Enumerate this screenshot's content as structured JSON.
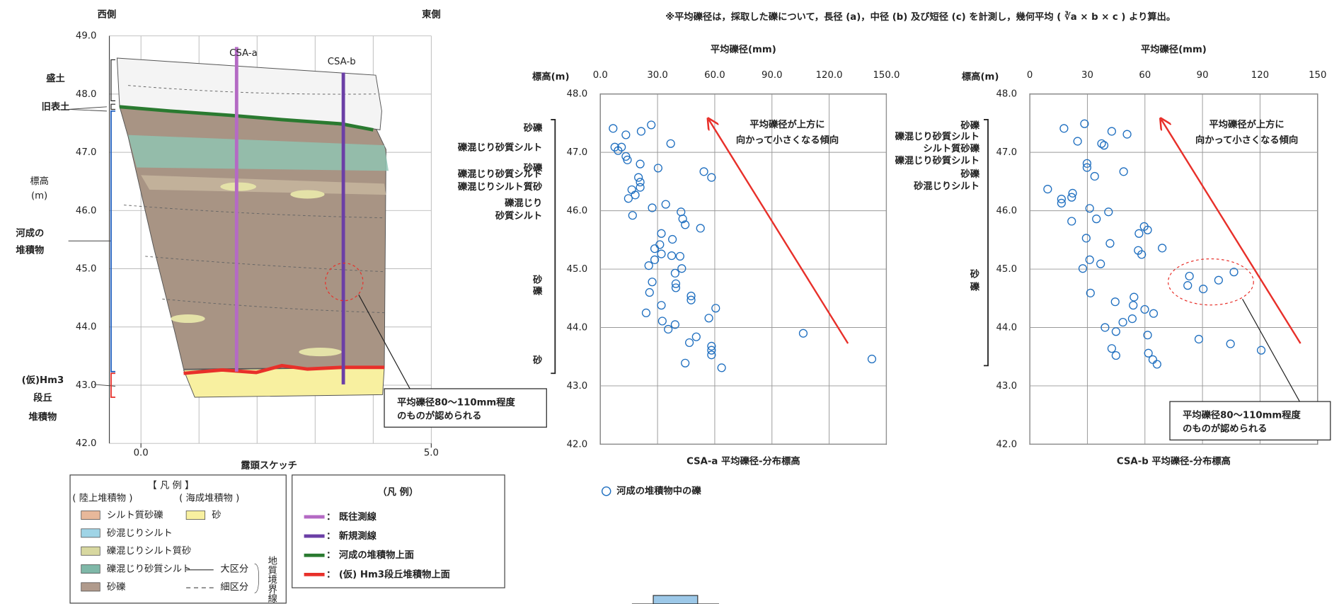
{
  "note": "※平均礫径は，採取した礫について，長径 (a)，中径 (b) 及び短径 (c) を計測し，幾何平均 ( ∛a × b × c ) より算出。",
  "sketch": {
    "title": "露頭スケッチ",
    "west": "西側",
    "east": "東側",
    "ylabel": [
      "標高",
      "(m)"
    ],
    "xlim": [
      0,
      5
    ],
    "ylim": [
      42,
      49
    ],
    "yticks": [
      {
        "value": 49,
        "label": "49.0"
      },
      {
        "value": 48,
        "label": "48.0"
      },
      {
        "value": 47,
        "label": "47.0"
      },
      {
        "value": 46,
        "label": "46.0"
      },
      {
        "value": 45,
        "label": "45.0"
      },
      {
        "value": 44,
        "label": "44.0"
      },
      {
        "value": 43,
        "label": "43.0"
      },
      {
        "value": 42,
        "label": "42.0"
      }
    ],
    "xticks": [
      {
        "value": 0,
        "label": "0.0"
      },
      {
        "value": 5,
        "label": "5.0"
      }
    ],
    "units": [
      {
        "label": [
          "盛土"
        ],
        "color": "#222"
      },
      {
        "label": [
          "旧表土"
        ],
        "color": "#222"
      },
      {
        "label": [
          "河成の",
          "堆積物"
        ],
        "color": "#1f5fbf"
      },
      {
        "label": [
          "(仮)Hm3",
          "段丘",
          "堆積物"
        ],
        "color": "#e8302a"
      }
    ],
    "survey_lines": [
      {
        "name": "CSA-a",
        "color": "#b46ac4"
      },
      {
        "name": "CSA-b",
        "color": "#6b3fa6"
      }
    ],
    "callout": [
      "平均礫径80～110mm程度",
      "のものが認められる"
    ]
  },
  "legend_geology": {
    "title": "【 凡 例 】",
    "land": "( 陸上堆積物 )",
    "sea": "( 海成堆積物 )",
    "items": [
      {
        "label": "シルト質砂礫",
        "color": "#e8b89a"
      },
      {
        "label": "砂混じりシルト",
        "color": "#9fd4e6"
      },
      {
        "label": "礫混じりシルト質砂",
        "color": "#d8d8a0"
      },
      {
        "label": "礫混じり砂質シルト",
        "color": "#7fb8a8"
      },
      {
        "label": "砂礫",
        "color": "#b09a8c"
      },
      {
        "label": "砂",
        "color": "#f8f0a0"
      }
    ],
    "boundaries": [
      "大区分",
      "細区分"
    ],
    "boundary_title": "地質境界線"
  },
  "legend_lines": {
    "title": "（凡 例）",
    "items": [
      {
        "label": "：  既往測線",
        "color": "#b46ac4"
      },
      {
        "label": "：  新規測線",
        "color": "#6b3fa6"
      },
      {
        "label": "：  河成の堆積物上面",
        "color": "#2a7a30"
      },
      {
        "label": "：  (仮) Hm3段丘堆積物上面",
        "color": "#e8302a"
      }
    ]
  },
  "chart_data": [
    {
      "type": "scatter",
      "title": "CSA-a 平均礫径-分布標高",
      "x_label": "平均礫径(mm)",
      "y_label": "標高(m)",
      "xlim": [
        0,
        150
      ],
      "ylim": [
        42,
        48
      ],
      "grid": true,
      "xticks": [
        {
          "value": 0,
          "label": "0.0"
        },
        {
          "value": 30,
          "label": "30.0"
        },
        {
          "value": 60,
          "label": "60.0"
        },
        {
          "value": 90,
          "label": "90.0"
        },
        {
          "value": 120,
          "label": "120.0"
        },
        {
          "value": 150,
          "label": "150.0"
        }
      ],
      "yticks": [
        {
          "value": 48,
          "label": "48.0"
        },
        {
          "value": 47,
          "label": "47.0"
        },
        {
          "value": 46,
          "label": "46.0"
        },
        {
          "value": 45,
          "label": "45.0"
        },
        {
          "value": 44,
          "label": "44.0"
        },
        {
          "value": 43,
          "label": "43.0"
        },
        {
          "value": 42,
          "label": "42.0"
        }
      ],
      "annotation": [
        "平均礫径が上方に",
        "向かって小さくなる傾向"
      ],
      "strata": [
        [
          "砂礫"
        ],
        [
          "礫混じり砂質シルト"
        ],
        [
          "砂礫"
        ],
        [
          "礫混じり砂質シルト"
        ],
        [
          "礫混じりシルト質砂"
        ],
        [
          "礫混じり",
          "砂質シルト"
        ],
        [
          "砂",
          "礫"
        ],
        [
          "砂"
        ]
      ],
      "series": [
        {
          "name": "河成の堆積物中の礫",
          "color": "#1f6fc0",
          "x": [
            6.7,
            7.6,
            9.3,
            11.1,
            13.4,
            13.4,
            14.2,
            26.7,
            36.9,
            21.4,
            20.9,
            20.0,
            20.9,
            20.9,
            16.5,
            18.3,
            14.7,
            16.9,
            30.3,
            58.3,
            54.3,
            34.3,
            42.3,
            43.2,
            44.5,
            27.2,
            52.5,
            32.0,
            37.8,
            31.2,
            28.5,
            32.0,
            37.4,
            28.5,
            41.8,
            25.4,
            42.7,
            39.2,
            27.2,
            39.6,
            39.6,
            25.8,
            47.6,
            47.6,
            32.0,
            24.0,
            60.5,
            56.9,
            32.5,
            39.2,
            35.6,
            106.4,
            50.3,
            46.7,
            58.3,
            58.3,
            58.3,
            44.5,
            63.6,
            142.4
          ],
          "values": [
            47.41,
            47.09,
            47.03,
            47.09,
            47.3,
            46.93,
            46.87,
            47.47,
            47.15,
            47.36,
            46.8,
            46.57,
            46.49,
            46.4,
            46.36,
            46.27,
            46.21,
            45.92,
            46.73,
            46.57,
            46.67,
            46.11,
            45.98,
            45.86,
            45.76,
            46.05,
            45.7,
            45.61,
            45.51,
            45.42,
            45.35,
            45.26,
            45.23,
            45.16,
            45.22,
            45.06,
            45.01,
            44.93,
            44.78,
            44.75,
            44.68,
            44.6,
            44.54,
            44.47,
            44.38,
            44.25,
            44.33,
            44.16,
            44.11,
            44.05,
            43.97,
            43.9,
            43.84,
            43.74,
            43.68,
            43.61,
            43.53,
            43.39,
            43.31,
            43.46
          ]
        }
      ]
    },
    {
      "type": "scatter",
      "title": "CSA-b 平均礫径-分布標高",
      "x_label": "平均礫径(mm)",
      "y_label": "標高(m)",
      "xlim": [
        0,
        150
      ],
      "ylim": [
        42,
        48
      ],
      "grid": true,
      "xticks": [
        0,
        30,
        60,
        90,
        120,
        150
      ],
      "yticks": [
        {
          "value": 48,
          "label": "48.0"
        },
        {
          "value": 47,
          "label": "47.0"
        },
        {
          "value": 46,
          "label": "46.0"
        },
        {
          "value": 45,
          "label": "45.0"
        },
        {
          "value": 44,
          "label": "44.0"
        },
        {
          "value": 43,
          "label": "43.0"
        },
        {
          "value": 42,
          "label": "42.0"
        }
      ],
      "annotation": [
        "平均礫径が上方に",
        "向かって小さくなる傾向"
      ],
      "callout": [
        "平均礫径80～110mm程度",
        "のものが認められる"
      ],
      "strata": [
        [
          "砂礫"
        ],
        [
          "礫混じり砂質シルト"
        ],
        [
          "シルト質砂礫"
        ],
        [
          "礫混じり砂質シルト"
        ],
        [
          "砂礫"
        ],
        [
          "砂混じりシルト"
        ],
        [
          "砂",
          "礫"
        ]
      ],
      "series": [
        {
          "color": "#1f6fc0",
          "x": [
            28.5,
            17.8,
            24.9,
            37.4,
            38.7,
            42.7,
            50.7,
            9.3,
            22.3,
            21.8,
            16.5,
            16.5,
            29.8,
            29.8,
            33.8,
            48.9,
            31.2,
            41.0,
            34.7,
            21.8,
            59.6,
            61.4,
            56.9,
            29.4,
            41.8,
            69.0,
            56.5,
            58.3,
            31.2,
            36.9,
            27.6,
            83.2,
            82.3,
            90.4,
            98.4,
            106.4,
            31.6,
            54.3,
            44.5,
            53.9,
            59.9,
            64.5,
            53.4,
            48.5,
            39.2,
            44.9,
            61.4,
            88.1,
            104.6,
            120.6,
            42.7,
            44.9,
            61.8,
            64.1,
            66.3
          ],
          "values": [
            47.49,
            47.41,
            47.19,
            47.15,
            47.12,
            47.36,
            47.31,
            46.37,
            46.3,
            46.23,
            46.2,
            46.13,
            46.81,
            46.74,
            46.59,
            46.67,
            46.04,
            45.98,
            45.86,
            45.82,
            45.73,
            45.67,
            45.61,
            45.53,
            45.44,
            45.36,
            45.32,
            45.25,
            45.16,
            45.09,
            45.01,
            44.88,
            44.72,
            44.66,
            44.81,
            44.95,
            44.59,
            44.52,
            44.44,
            44.38,
            44.31,
            44.24,
            44.15,
            44.09,
            44,
            43.93,
            43.87,
            43.8,
            43.72,
            43.61,
            43.64,
            43.52,
            43.56,
            43.45,
            43.37
          ]
        }
      ]
    }
  ]
}
